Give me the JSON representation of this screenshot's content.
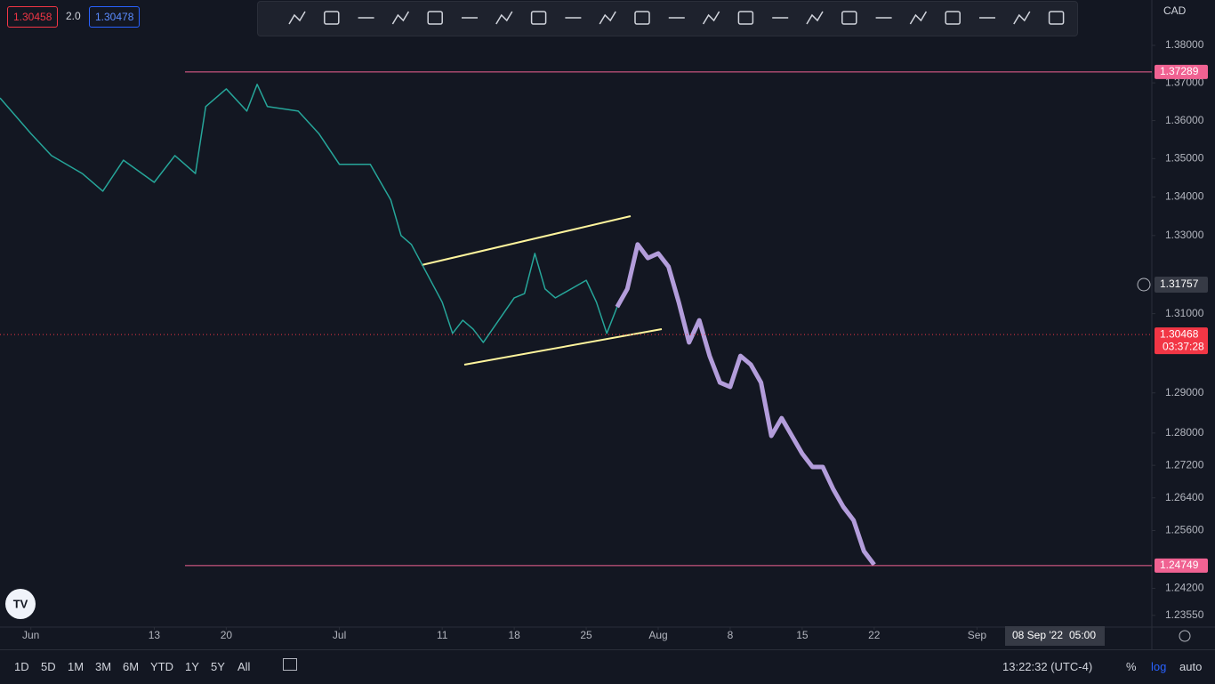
{
  "header": {
    "bid": "1.30458",
    "spread": "2.0",
    "ask": "1.30478",
    "currency": "CAD"
  },
  "chart_data": {
    "type": "line",
    "log_scale": true,
    "xlim": [
      "2022-05-29",
      "2022-09-18"
    ],
    "xticks": [
      {
        "value": "2022-06-01",
        "label": "Jun"
      },
      {
        "value": "2022-06-13",
        "label": "13"
      },
      {
        "value": "2022-06-20",
        "label": "20"
      },
      {
        "value": "2022-07-01",
        "label": "Jul"
      },
      {
        "value": "2022-07-11",
        "label": "11"
      },
      {
        "value": "2022-07-18",
        "label": "18"
      },
      {
        "value": "2022-07-25",
        "label": "25"
      },
      {
        "value": "2022-08-01",
        "label": "Aug"
      },
      {
        "value": "2022-08-08",
        "label": "8"
      },
      {
        "value": "2022-08-15",
        "label": "15"
      },
      {
        "value": "2022-08-22",
        "label": "22"
      },
      {
        "value": "2022-09-01",
        "label": "Sep"
      }
    ],
    "ylim": [
      1.2327,
      1.3922
    ],
    "yticks": [
      {
        "value": 1.38,
        "label": "1.38000"
      },
      {
        "value": 1.37,
        "label": "1.37000"
      },
      {
        "value": 1.36,
        "label": "1.36000"
      },
      {
        "value": 1.35,
        "label": "1.35000"
      },
      {
        "value": 1.34,
        "label": "1.34000"
      },
      {
        "value": 1.33,
        "label": "1.33000"
      },
      {
        "value": 1.31,
        "label": "1.31000"
      },
      {
        "value": 1.29,
        "label": "1.29000"
      },
      {
        "value": 1.28,
        "label": "1.28000"
      },
      {
        "value": 1.272,
        "label": "1.27200"
      },
      {
        "value": 1.264,
        "label": "1.26400"
      },
      {
        "value": 1.256,
        "label": "1.25600"
      },
      {
        "value": 1.242,
        "label": "1.24200"
      },
      {
        "value": 1.2355,
        "label": "1.23550"
      }
    ],
    "series": [
      {
        "color": "#26a69a",
        "width": 1.5,
        "x": [
          "2022-05-29",
          "2022-06-01",
          "2022-06-03",
          "2022-06-06",
          "2022-06-08",
          "2022-06-10",
          "2022-06-13",
          "2022-06-15",
          "2022-06-17",
          "2022-06-18",
          "2022-06-20",
          "2022-06-22",
          "2022-06-23",
          "2022-06-24",
          "2022-06-27",
          "2022-06-29",
          "2022-07-01",
          "2022-07-04",
          "2022-07-06",
          "2022-07-07",
          "2022-07-08",
          "2022-07-11",
          "2022-07-12",
          "2022-07-13",
          "2022-07-14",
          "2022-07-15",
          "2022-07-18",
          "2022-07-19",
          "2022-07-20",
          "2022-07-21",
          "2022-07-22",
          "2022-07-25",
          "2022-07-26",
          "2022-07-27",
          "2022-07-28"
        ],
        "values": [
          1.366,
          1.3566,
          1.3508,
          1.3461,
          1.3415,
          1.3496,
          1.3438,
          1.3508,
          1.3461,
          1.3637,
          1.3684,
          1.3625,
          1.3696,
          1.3637,
          1.3625,
          1.3566,
          1.3485,
          1.3485,
          1.3392,
          1.33,
          1.3277,
          1.3129,
          1.305,
          1.3083,
          1.3061,
          1.3027,
          1.314,
          1.3151,
          1.3254,
          1.3163,
          1.314,
          1.3185,
          1.3129,
          1.305,
          1.3117
        ]
      },
      {
        "color": "#b39ddb",
        "width": 5,
        "x": [
          "2022-07-28",
          "2022-07-29",
          "2022-07-30",
          "2022-07-31",
          "2022-08-01",
          "2022-08-02",
          "2022-08-03",
          "2022-08-04",
          "2022-08-05",
          "2022-08-06",
          "2022-08-07",
          "2022-08-08",
          "2022-08-09",
          "2022-08-10",
          "2022-08-11",
          "2022-08-12",
          "2022-08-13",
          "2022-08-14",
          "2022-08-15",
          "2022-08-16",
          "2022-08-17",
          "2022-08-18",
          "2022-08-19",
          "2022-08-20",
          "2022-08-21",
          "2022-08-22"
        ],
        "values": [
          1.3117,
          1.3163,
          1.3277,
          1.3242,
          1.3254,
          1.322,
          1.3129,
          1.3027,
          1.3083,
          1.2993,
          1.2926,
          1.2915,
          1.2993,
          1.2971,
          1.2926,
          1.2793,
          1.2837,
          1.2793,
          1.2749,
          1.2716,
          1.2716,
          1.2662,
          1.2618,
          1.2585,
          1.251,
          1.2477
        ]
      }
    ],
    "price_lines": [
      {
        "value": 1.37289,
        "label": "1.37289",
        "color": "#f06292",
        "style": "solid"
      },
      {
        "value": 1.24749,
        "label": "1.24749",
        "color": "#f06292",
        "style": "solid"
      },
      {
        "value": 1.30468,
        "label": "1.30468",
        "color": "#f23645",
        "style": "dotted",
        "countdown": "03:37:28"
      }
    ],
    "crosshair_price": "1.31757",
    "crosshair_time": [
      "08 Sep '22",
      "05:00"
    ]
  },
  "bottom_bar": {
    "ranges": [
      "1D",
      "5D",
      "1M",
      "3M",
      "6M",
      "YTD",
      "1Y",
      "5Y",
      "All"
    ],
    "clock": "13:22:32 (UTC-4)",
    "percent": "%",
    "log": "log",
    "auto": "auto"
  }
}
